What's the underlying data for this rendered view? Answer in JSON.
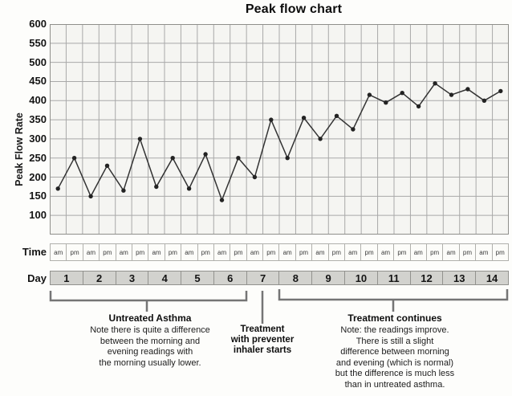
{
  "chart_data": {
    "type": "line",
    "title": "Peak flow chart",
    "ylabel": "Peak Flow Rate",
    "ylim": [
      50,
      600
    ],
    "ytick_interval": 50,
    "ytick_labels": [
      "600",
      "550",
      "500",
      "450",
      "400",
      "350",
      "300",
      "250",
      "200",
      "150",
      "100"
    ],
    "grid": true,
    "legend": "none",
    "axis_rows": {
      "time_label": "Time",
      "day_label": "Day"
    },
    "days": [
      "1",
      "2",
      "3",
      "4",
      "5",
      "6",
      "7",
      "8",
      "9",
      "10",
      "11",
      "12",
      "13",
      "14"
    ],
    "times_per_day": [
      "am",
      "pm"
    ],
    "series": [
      {
        "name": "Peak Flow Rate",
        "x_order": "two readings per day, am then pm, days 1-14",
        "values": [
          170,
          250,
          150,
          230,
          165,
          300,
          175,
          250,
          170,
          260,
          140,
          250,
          200,
          350,
          250,
          355,
          300,
          360,
          325,
          415,
          395,
          420,
          385,
          445,
          415,
          430,
          400,
          425
        ]
      }
    ]
  },
  "annotations": {
    "untreated": {
      "heading": "Untreated Asthma",
      "body": "Note there is quite a difference\nbetween the morning and\nevening readings with\nthe morning usually lower."
    },
    "treatment_start": {
      "heading": "Treatment\nwith preventer\ninhaler starts"
    },
    "treatment_continues": {
      "heading": "Treatment continues",
      "body": "Note: the readings improve.\nThere is still a slight\ndifference between morning\nand evening (which is normal)\nbut the difference is much less\nthan in untreated asthma."
    }
  },
  "colors": {
    "line": "#333333",
    "marker": "#232323",
    "grid": "#a9a9a9",
    "plot_border": "#8f8f8b",
    "plot_bg": "#f5f5f2",
    "day_row_bg": "#d2d2ce",
    "bracket": "#757575"
  }
}
